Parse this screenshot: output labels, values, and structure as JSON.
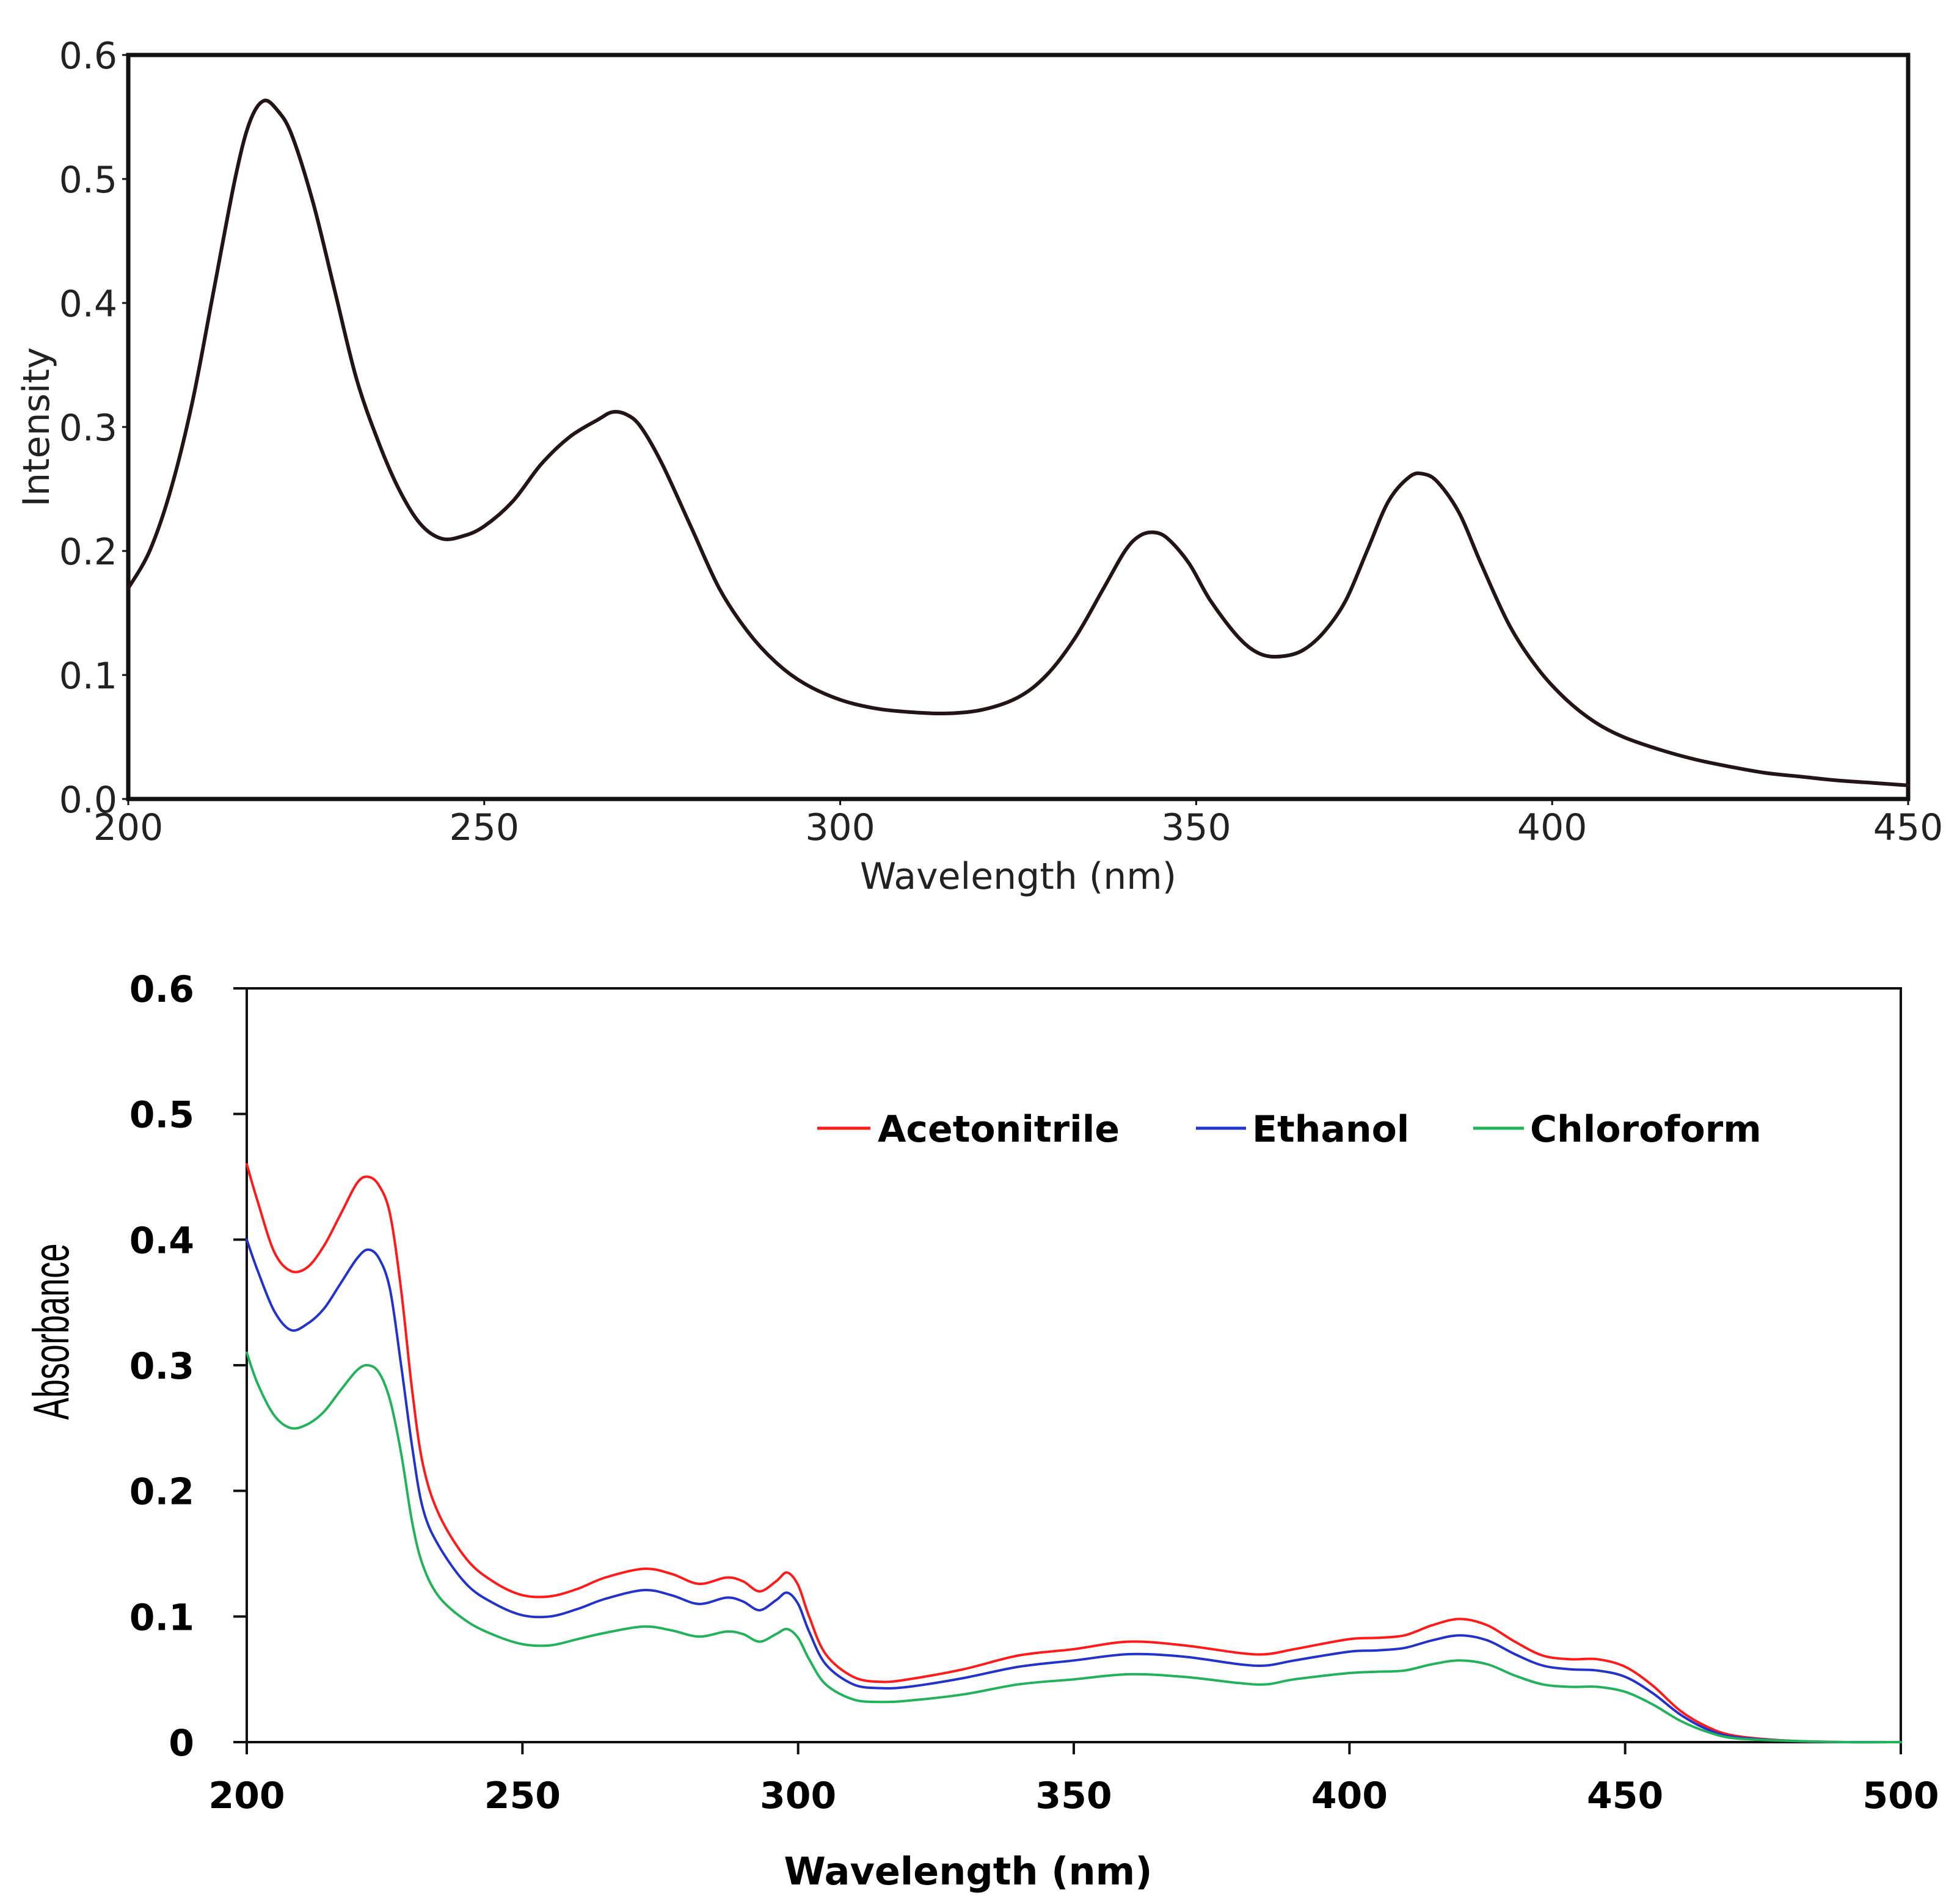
{
  "chart_data": [
    {
      "type": "line",
      "title": "",
      "xlabel": "Wavelength (nm)",
      "ylabel": "Intensity",
      "xlim": [
        200,
        450
      ],
      "ylim": [
        0.0,
        0.6
      ],
      "xticks": [
        200,
        250,
        300,
        350,
        400,
        450
      ],
      "xtick_labels": [
        "200",
        "250",
        "300",
        "350",
        "400",
        "450"
      ],
      "yticks": [
        0.0,
        0.1,
        0.2,
        0.3,
        0.4,
        0.5,
        0.6
      ],
      "ytick_labels": [
        "0.0",
        "0.1",
        "0.2",
        "0.3",
        "0.4",
        "0.5",
        "0.6"
      ],
      "grid": false,
      "series": [
        {
          "name": "Intensity",
          "color": "#231515",
          "points": [
            [
              200,
              0.17
            ],
            [
              203,
              0.2
            ],
            [
              206,
              0.25
            ],
            [
              209,
              0.32
            ],
            [
              212,
              0.41
            ],
            [
              215,
              0.5
            ],
            [
              217,
              0.545
            ],
            [
              219,
              0.563
            ],
            [
              221,
              0.555
            ],
            [
              223,
              0.535
            ],
            [
              226,
              0.48
            ],
            [
              229,
              0.41
            ],
            [
              232,
              0.34
            ],
            [
              235,
              0.29
            ],
            [
              238,
              0.25
            ],
            [
              241,
              0.222
            ],
            [
              244,
              0.21
            ],
            [
              247,
              0.212
            ],
            [
              250,
              0.22
            ],
            [
              254,
              0.24
            ],
            [
              258,
              0.27
            ],
            [
              262,
              0.292
            ],
            [
              266,
              0.306
            ],
            [
              268,
              0.312
            ],
            [
              270,
              0.31
            ],
            [
              272,
              0.3
            ],
            [
              275,
              0.27
            ],
            [
              279,
              0.22
            ],
            [
              283,
              0.17
            ],
            [
              287,
              0.135
            ],
            [
              291,
              0.11
            ],
            [
              295,
              0.093
            ],
            [
              300,
              0.08
            ],
            [
              305,
              0.073
            ],
            [
              310,
              0.07
            ],
            [
              315,
              0.069
            ],
            [
              320,
              0.072
            ],
            [
              325,
              0.082
            ],
            [
              329,
              0.1
            ],
            [
              333,
              0.13
            ],
            [
              337,
              0.17
            ],
            [
              340,
              0.2
            ],
            [
              342,
              0.212
            ],
            [
              344,
              0.215
            ],
            [
              346,
              0.21
            ],
            [
              349,
              0.19
            ],
            [
              352,
              0.16
            ],
            [
              356,
              0.13
            ],
            [
              359,
              0.117
            ],
            [
              362,
              0.115
            ],
            [
              365,
              0.12
            ],
            [
              368,
              0.135
            ],
            [
              371,
              0.16
            ],
            [
              374,
              0.2
            ],
            [
              377,
              0.24
            ],
            [
              380,
              0.26
            ],
            [
              382,
              0.262
            ],
            [
              384,
              0.255
            ],
            [
              387,
              0.23
            ],
            [
              390,
              0.19
            ],
            [
              394,
              0.14
            ],
            [
              398,
              0.105
            ],
            [
              402,
              0.08
            ],
            [
              406,
              0.062
            ],
            [
              410,
              0.05
            ],
            [
              415,
              0.04
            ],
            [
              420,
              0.032
            ],
            [
              425,
              0.026
            ],
            [
              430,
              0.021
            ],
            [
              435,
              0.018
            ],
            [
              440,
              0.015
            ],
            [
              445,
              0.013
            ],
            [
              450,
              0.011
            ]
          ]
        }
      ]
    },
    {
      "type": "line",
      "title": "",
      "xlabel": "Wavelength (nm)",
      "ylabel": "Absorbance",
      "xlim": [
        200,
        500
      ],
      "ylim": [
        0,
        0.6
      ],
      "xticks": [
        200,
        250,
        300,
        350,
        400,
        450,
        500
      ],
      "xtick_labels": [
        "200",
        "250",
        "300",
        "350",
        "400",
        "450",
        "500"
      ],
      "yticks": [
        0,
        0.1,
        0.2,
        0.3,
        0.4,
        0.5,
        0.6
      ],
      "ytick_labels": [
        "0",
        "0.1",
        "0.2",
        "0.3",
        "0.4",
        "0.5",
        "0.6"
      ],
      "grid": false,
      "legend": "top-right",
      "series": [
        {
          "name": "Acetonitrile",
          "color": "#ff1a1a",
          "points": [
            [
              200,
              0.46
            ],
            [
              202,
              0.43
            ],
            [
              205,
              0.39
            ],
            [
              208,
              0.375
            ],
            [
              211,
              0.378
            ],
            [
              214,
              0.395
            ],
            [
              217,
              0.42
            ],
            [
              220,
              0.445
            ],
            [
              222,
              0.45
            ],
            [
              224,
              0.443
            ],
            [
              226,
              0.42
            ],
            [
              228,
              0.36
            ],
            [
              230,
              0.28
            ],
            [
              232,
              0.22
            ],
            [
              235,
              0.18
            ],
            [
              240,
              0.145
            ],
            [
              245,
              0.127
            ],
            [
              250,
              0.117
            ],
            [
              255,
              0.116
            ],
            [
              260,
              0.122
            ],
            [
              265,
              0.131
            ],
            [
              272,
              0.138
            ],
            [
              277,
              0.134
            ],
            [
              282,
              0.126
            ],
            [
              287,
              0.131
            ],
            [
              290,
              0.128
            ],
            [
              293,
              0.12
            ],
            [
              296,
              0.128
            ],
            [
              298,
              0.135
            ],
            [
              300,
              0.125
            ],
            [
              302,
              0.1
            ],
            [
              305,
              0.07
            ],
            [
              310,
              0.052
            ],
            [
              315,
              0.048
            ],
            [
              320,
              0.05
            ],
            [
              330,
              0.058
            ],
            [
              340,
              0.069
            ],
            [
              350,
              0.074
            ],
            [
              360,
              0.08
            ],
            [
              370,
              0.077
            ],
            [
              380,
              0.071
            ],
            [
              385,
              0.07
            ],
            [
              390,
              0.074
            ],
            [
              400,
              0.082
            ],
            [
              405,
              0.083
            ],
            [
              410,
              0.085
            ],
            [
              415,
              0.093
            ],
            [
              420,
              0.098
            ],
            [
              425,
              0.093
            ],
            [
              430,
              0.08
            ],
            [
              435,
              0.069
            ],
            [
              440,
              0.066
            ],
            [
              445,
              0.066
            ],
            [
              450,
              0.06
            ],
            [
              455,
              0.045
            ],
            [
              460,
              0.025
            ],
            [
              465,
              0.012
            ],
            [
              470,
              0.005
            ],
            [
              480,
              0.001
            ],
            [
              490,
              0.0
            ],
            [
              500,
              0.0
            ]
          ]
        },
        {
          "name": "Ethanol",
          "color": "#2233cc",
          "points": [
            [
              200,
              0.4
            ],
            [
              202,
              0.375
            ],
            [
              205,
              0.343
            ],
            [
              208,
              0.328
            ],
            [
              211,
              0.333
            ],
            [
              214,
              0.345
            ],
            [
              217,
              0.365
            ],
            [
              220,
              0.385
            ],
            [
              222,
              0.392
            ],
            [
              224,
              0.385
            ],
            [
              226,
              0.36
            ],
            [
              228,
              0.3
            ],
            [
              230,
              0.235
            ],
            [
              232,
              0.185
            ],
            [
              235,
              0.155
            ],
            [
              240,
              0.125
            ],
            [
              245,
              0.11
            ],
            [
              250,
              0.101
            ],
            [
              255,
              0.1
            ],
            [
              260,
              0.106
            ],
            [
              265,
              0.114
            ],
            [
              272,
              0.121
            ],
            [
              277,
              0.117
            ],
            [
              282,
              0.11
            ],
            [
              287,
              0.115
            ],
            [
              290,
              0.112
            ],
            [
              293,
              0.105
            ],
            [
              296,
              0.113
            ],
            [
              298,
              0.119
            ],
            [
              300,
              0.11
            ],
            [
              302,
              0.088
            ],
            [
              305,
              0.062
            ],
            [
              310,
              0.046
            ],
            [
              315,
              0.043
            ],
            [
              320,
              0.044
            ],
            [
              330,
              0.051
            ],
            [
              340,
              0.06
            ],
            [
              350,
              0.065
            ],
            [
              360,
              0.07
            ],
            [
              370,
              0.068
            ],
            [
              380,
              0.062
            ],
            [
              385,
              0.061
            ],
            [
              390,
              0.065
            ],
            [
              400,
              0.072
            ],
            [
              405,
              0.073
            ],
            [
              410,
              0.075
            ],
            [
              415,
              0.081
            ],
            [
              420,
              0.085
            ],
            [
              425,
              0.081
            ],
            [
              430,
              0.07
            ],
            [
              435,
              0.061
            ],
            [
              440,
              0.058
            ],
            [
              445,
              0.057
            ],
            [
              450,
              0.052
            ],
            [
              455,
              0.039
            ],
            [
              460,
              0.022
            ],
            [
              465,
              0.01
            ],
            [
              470,
              0.004
            ],
            [
              480,
              0.001
            ],
            [
              490,
              0.0
            ],
            [
              500,
              0.0
            ]
          ]
        },
        {
          "name": "Chloroform",
          "color": "#22b35a",
          "points": [
            [
              200,
              0.31
            ],
            [
              202,
              0.285
            ],
            [
              205,
              0.26
            ],
            [
              208,
              0.25
            ],
            [
              211,
              0.253
            ],
            [
              214,
              0.263
            ],
            [
              217,
              0.28
            ],
            [
              220,
              0.296
            ],
            [
              222,
              0.3
            ],
            [
              224,
              0.294
            ],
            [
              226,
              0.272
            ],
            [
              228,
              0.23
            ],
            [
              230,
              0.175
            ],
            [
              232,
              0.14
            ],
            [
              235,
              0.115
            ],
            [
              240,
              0.096
            ],
            [
              245,
              0.085
            ],
            [
              250,
              0.078
            ],
            [
              255,
              0.077
            ],
            [
              260,
              0.082
            ],
            [
              265,
              0.087
            ],
            [
              272,
              0.092
            ],
            [
              277,
              0.089
            ],
            [
              282,
              0.084
            ],
            [
              287,
              0.088
            ],
            [
              290,
              0.086
            ],
            [
              293,
              0.08
            ],
            [
              296,
              0.086
            ],
            [
              298,
              0.09
            ],
            [
              300,
              0.083
            ],
            [
              302,
              0.066
            ],
            [
              305,
              0.046
            ],
            [
              310,
              0.034
            ],
            [
              315,
              0.032
            ],
            [
              320,
              0.033
            ],
            [
              330,
              0.038
            ],
            [
              340,
              0.046
            ],
            [
              350,
              0.05
            ],
            [
              360,
              0.054
            ],
            [
              370,
              0.052
            ],
            [
              380,
              0.047
            ],
            [
              385,
              0.046
            ],
            [
              390,
              0.05
            ],
            [
              400,
              0.055
            ],
            [
              405,
              0.056
            ],
            [
              410,
              0.057
            ],
            [
              415,
              0.062
            ],
            [
              420,
              0.065
            ],
            [
              425,
              0.062
            ],
            [
              430,
              0.053
            ],
            [
              435,
              0.046
            ],
            [
              440,
              0.044
            ],
            [
              445,
              0.044
            ],
            [
              450,
              0.04
            ],
            [
              455,
              0.03
            ],
            [
              460,
              0.017
            ],
            [
              465,
              0.008
            ],
            [
              470,
              0.003
            ],
            [
              480,
              0.001
            ],
            [
              490,
              0.0
            ],
            [
              500,
              0.0
            ]
          ]
        }
      ]
    }
  ]
}
